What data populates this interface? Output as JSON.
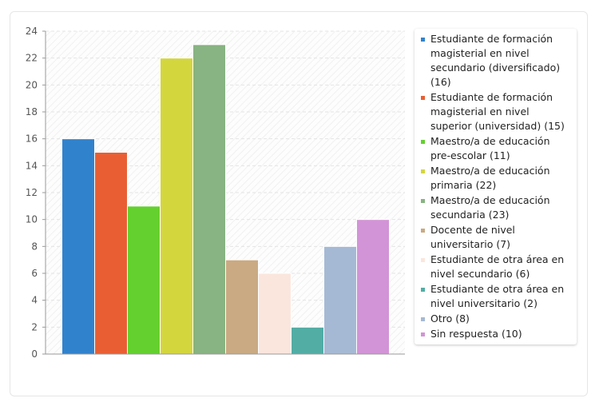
{
  "chart_data": {
    "type": "bar",
    "categories": [
      "Estudiante de formación magisterial en nivel secundario (diversificado) (16)",
      "Estudiante de formación magisterial en nivel superior (universidad) (15)",
      "Maestro/a de educación pre-escolar (11)",
      "Maestro/a de educación primaria (22)",
      "Maestro/a de educación secundaria (23)",
      "Docente de nivel universitario (7)",
      "Estudiante de otra área en nivel secundario (6)",
      "Estudiante de otra área en nivel universitario (2)",
      "Otro (8)",
      "Sin respuesta (10)"
    ],
    "values": [
      16,
      15,
      11,
      22,
      23,
      7,
      6,
      2,
      8,
      10
    ],
    "colors": [
      "#3182cc",
      "#e95f33",
      "#64d030",
      "#d4d63e",
      "#88b382",
      "#c9aa82",
      "#fbe6dd",
      "#52ada5",
      "#a6b9d4",
      "#d294d6"
    ],
    "ylim": [
      0,
      24
    ],
    "yticks": [
      "0",
      "2",
      "4",
      "6",
      "8",
      "10",
      "12",
      "14",
      "16",
      "18",
      "20",
      "22",
      "24"
    ],
    "grid": true,
    "legend_position": "right"
  }
}
